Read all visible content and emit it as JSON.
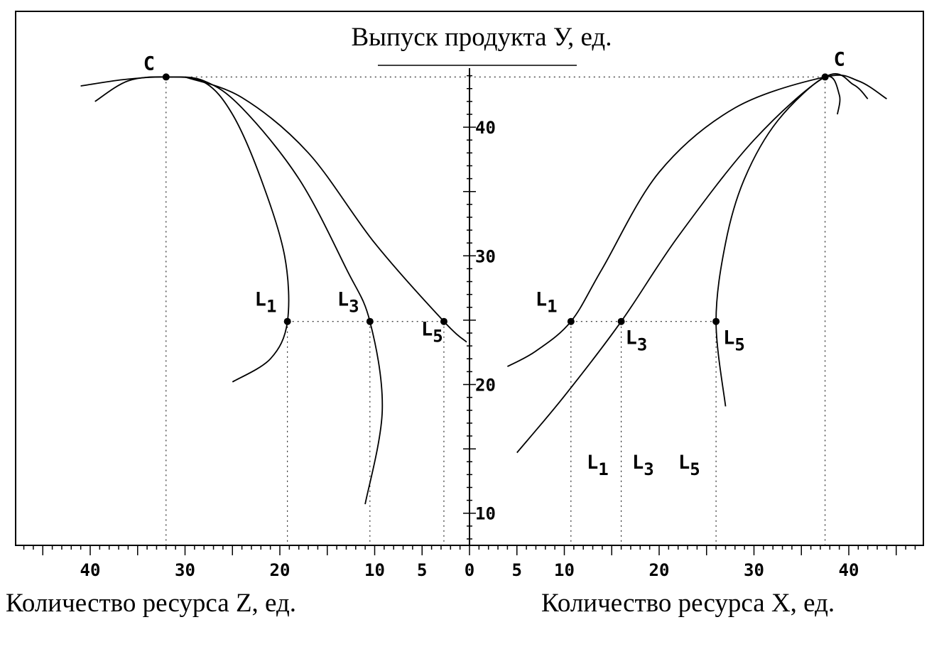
{
  "chart_data": {
    "type": "line",
    "title": "Выпуск продукта У, ед.",
    "xlabel_left": "Количество ресурса Z, ед.",
    "xlabel_right": "Количество ресурса X, ед.",
    "y_ticks": [
      "10",
      "20",
      "30",
      "40"
    ],
    "x_ticks_left": [
      "40",
      "30",
      "20",
      "10",
      "5",
      "0"
    ],
    "x_ticks_right": [
      "5",
      "10",
      "20",
      "30",
      "40"
    ],
    "ylim": [
      7.5,
      45
    ],
    "xlim_left": [
      0,
      48
    ],
    "xlim_right": [
      0,
      48
    ],
    "reference_y": 24.9,
    "peak_y": 43.9,
    "peak_label": "C",
    "peak_left_x": 32,
    "peak_right_x": 37.5,
    "grid": false,
    "series": [
      {
        "side": "left",
        "label": "L1",
        "points": [
          [
            39.5,
            42
          ],
          [
            36,
            43.6
          ],
          [
            32,
            43.9
          ],
          [
            28,
            43.5
          ],
          [
            25,
            41
          ],
          [
            22,
            36
          ],
          [
            19.5,
            30
          ],
          [
            19.2,
            24.9
          ],
          [
            21,
            22
          ],
          [
            25,
            20.2
          ]
        ]
      },
      {
        "side": "left",
        "label": "L3",
        "points": [
          [
            41,
            43.2
          ],
          [
            36.5,
            43.7
          ],
          [
            32,
            43.9
          ],
          [
            28,
            43.6
          ],
          [
            24,
            41.5
          ],
          [
            18,
            36
          ],
          [
            13,
            29
          ],
          [
            10.5,
            24.9
          ],
          [
            9.2,
            18
          ],
          [
            11,
            10.7
          ]
        ]
      },
      {
        "side": "left",
        "label": "L5",
        "points": [
          [
            30,
            43.9
          ],
          [
            24,
            42.3
          ],
          [
            17,
            38
          ],
          [
            10,
            31
          ],
          [
            2.7,
            24.9
          ],
          [
            0.3,
            23.3
          ]
        ]
      },
      {
        "side": "right",
        "label": "L1",
        "points": [
          [
            4,
            21.4
          ],
          [
            7,
            22.6
          ],
          [
            10.7,
            24.9
          ],
          [
            14,
            29
          ],
          [
            20,
            36.5
          ],
          [
            28,
            41.5
          ],
          [
            37.5,
            43.9
          ],
          [
            41,
            43.6
          ],
          [
            44,
            42.2
          ]
        ]
      },
      {
        "side": "right",
        "label": "L3",
        "points": [
          [
            5,
            14.7
          ],
          [
            10,
            19.1
          ],
          [
            16,
            24.9
          ],
          [
            22,
            31.5
          ],
          [
            30,
            39
          ],
          [
            37.5,
            43.9
          ],
          [
            40.5,
            43.3
          ],
          [
            42,
            42.2
          ]
        ]
      },
      {
        "side": "right",
        "label": "L5",
        "points": [
          [
            27,
            18.3
          ],
          [
            26,
            24.9
          ],
          [
            27,
            31
          ],
          [
            29,
            36
          ],
          [
            32.5,
            40.5
          ],
          [
            37.5,
            43.9
          ],
          [
            39,
            42.5
          ],
          [
            38.8,
            41
          ]
        ]
      }
    ],
    "points": [
      {
        "side": "left",
        "label": "L1",
        "x": 19.2,
        "y": 24.9
      },
      {
        "side": "left",
        "label": "L3",
        "x": 10.5,
        "y": 24.9
      },
      {
        "side": "left",
        "label": "L5",
        "x": 2.7,
        "y": 24.9
      },
      {
        "side": "right",
        "label": "L1",
        "x": 10.7,
        "y": 24.9
      },
      {
        "side": "right",
        "label": "L3",
        "x": 16,
        "y": 24.9
      },
      {
        "side": "right",
        "label": "L5",
        "x": 26,
        "y": 24.9
      }
    ],
    "bottom_labels": [
      "L1",
      "L3",
      "L5"
    ]
  }
}
